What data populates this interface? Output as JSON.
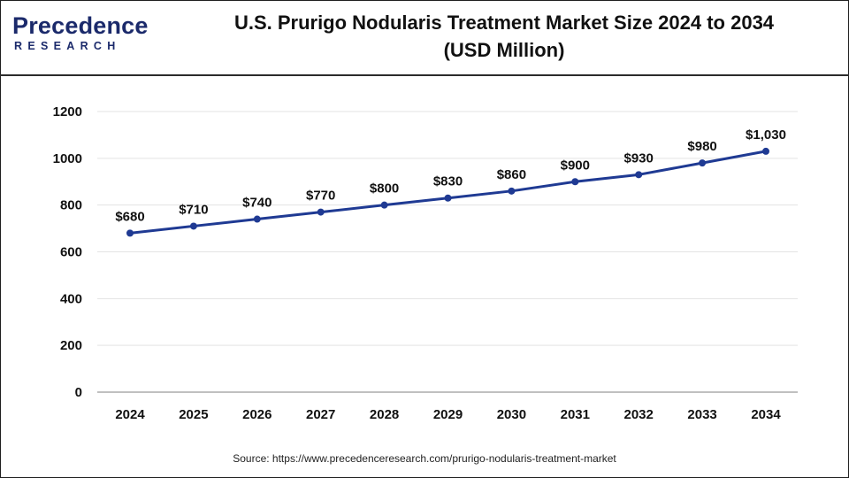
{
  "brand": {
    "name": "Precedence",
    "sub": "RESEARCH",
    "color": "#1b2a6b"
  },
  "header": {
    "title_line1": "U.S. Prurigo Nodularis Treatment Market Size 2024 to 2034",
    "title_line2": "(USD Million)"
  },
  "chart_data": {
    "type": "line",
    "title": "U.S. Prurigo Nodularis Treatment Market Size 2024 to 2034 (USD Million)",
    "xlabel": "",
    "ylabel": "",
    "categories": [
      "2024",
      "2025",
      "2026",
      "2027",
      "2028",
      "2029",
      "2030",
      "2031",
      "2032",
      "2033",
      "2034"
    ],
    "series": [
      {
        "values": [
          680,
          710,
          740,
          770,
          800,
          830,
          860,
          900,
          930,
          980,
          1030
        ],
        "data_labels": [
          "$680",
          "$710",
          "$740",
          "$770",
          "$800",
          "$830",
          "$860",
          "$900",
          "$930",
          "$980",
          "$1,030"
        ],
        "color": "#1f3a93"
      }
    ],
    "ylim": [
      0,
      1200
    ],
    "yticks": [
      0,
      200,
      400,
      600,
      800,
      1000,
      1200
    ],
    "grid": true,
    "legend": "none"
  },
  "footer": {
    "source": "Source: https://www.precedenceresearch.com/prurigo-nodularis-treatment-market"
  }
}
